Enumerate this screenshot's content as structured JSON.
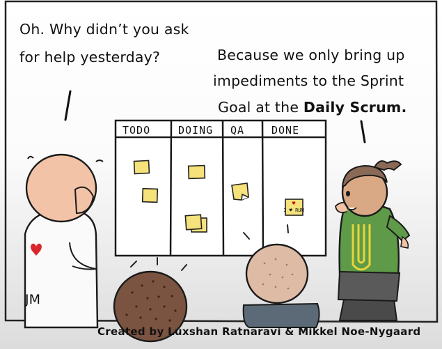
{
  "speech_left": {
    "line1": "Oh. Why didn’t you ask",
    "line2": "for help yesterday?"
  },
  "speech_right": {
    "line1": "Because we only bring up",
    "line2": "impediments to the Sprint",
    "line3_prefix": "Goal at the ",
    "line3_bold": "Daily Scrum."
  },
  "board": {
    "columns": [
      "TODO",
      "DOING",
      "QA",
      "DONE"
    ],
    "done_note_text": "I ♥ RUM"
  },
  "shirt_initials": "JM",
  "credit": "Created by Luxshan Ratnaravi & Mikkel Noe-Nygaard",
  "colors": {
    "sticky": "#f6e27a",
    "sweater": "#5e9a48",
    "skin": "#f2c3a6",
    "hair_brown": "#7a5440",
    "hair_beige": "#c7a18a"
  }
}
